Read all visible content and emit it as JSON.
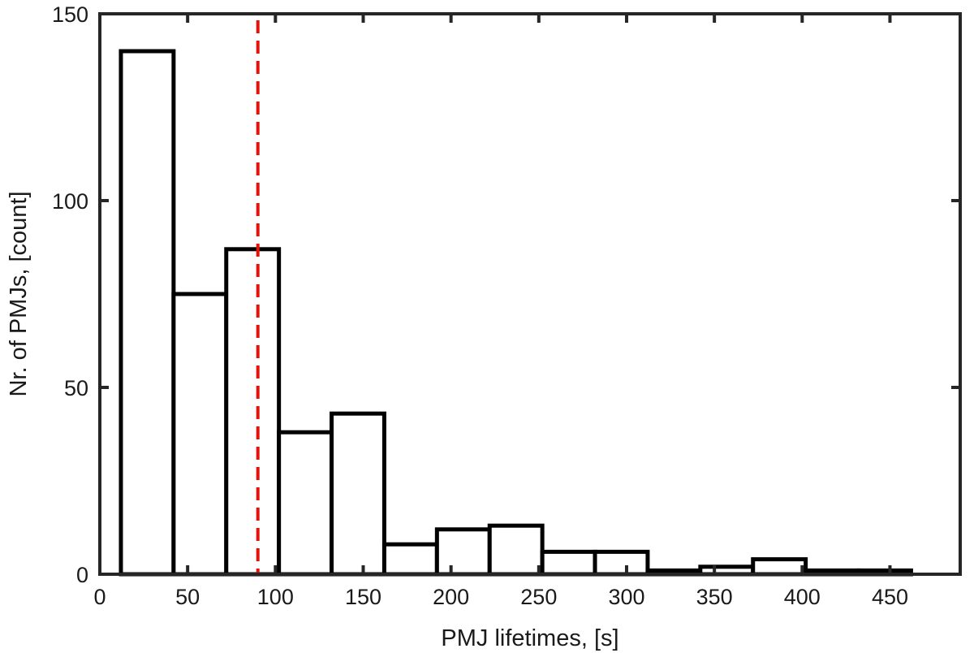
{
  "chart_data": {
    "type": "bar",
    "title": "",
    "xlabel": "PMJ lifetimes, [s]",
    "ylabel": "Nr. of PMJs, [count]",
    "xlim": [
      0,
      490
    ],
    "ylim": [
      0,
      150
    ],
    "xticks": [
      0,
      50,
      100,
      150,
      200,
      250,
      300,
      350,
      400,
      450
    ],
    "yticks": [
      0,
      50,
      100,
      150
    ],
    "bins": [
      {
        "x0": 12,
        "x1": 42,
        "value": 140
      },
      {
        "x0": 42,
        "x1": 72,
        "value": 75
      },
      {
        "x0": 72,
        "x1": 102,
        "value": 87
      },
      {
        "x0": 102,
        "x1": 132,
        "value": 38
      },
      {
        "x0": 132,
        "x1": 162,
        "value": 43
      },
      {
        "x0": 162,
        "x1": 192,
        "value": 8
      },
      {
        "x0": 192,
        "x1": 222,
        "value": 12
      },
      {
        "x0": 222,
        "x1": 252,
        "value": 13
      },
      {
        "x0": 252,
        "x1": 282,
        "value": 6
      },
      {
        "x0": 282,
        "x1": 312,
        "value": 6
      },
      {
        "x0": 312,
        "x1": 342,
        "value": 1
      },
      {
        "x0": 342,
        "x1": 372,
        "value": 2
      },
      {
        "x0": 372,
        "x1": 402,
        "value": 4
      },
      {
        "x0": 402,
        "x1": 432,
        "value": 1
      },
      {
        "x0": 432,
        "x1": 462,
        "value": 1
      }
    ],
    "reference_line": {
      "x": 90,
      "color": "#e3120b",
      "style": "dashed"
    },
    "bar_fill": "#ffffff",
    "bar_edge": "#000000",
    "grid": false,
    "legend": "none"
  }
}
